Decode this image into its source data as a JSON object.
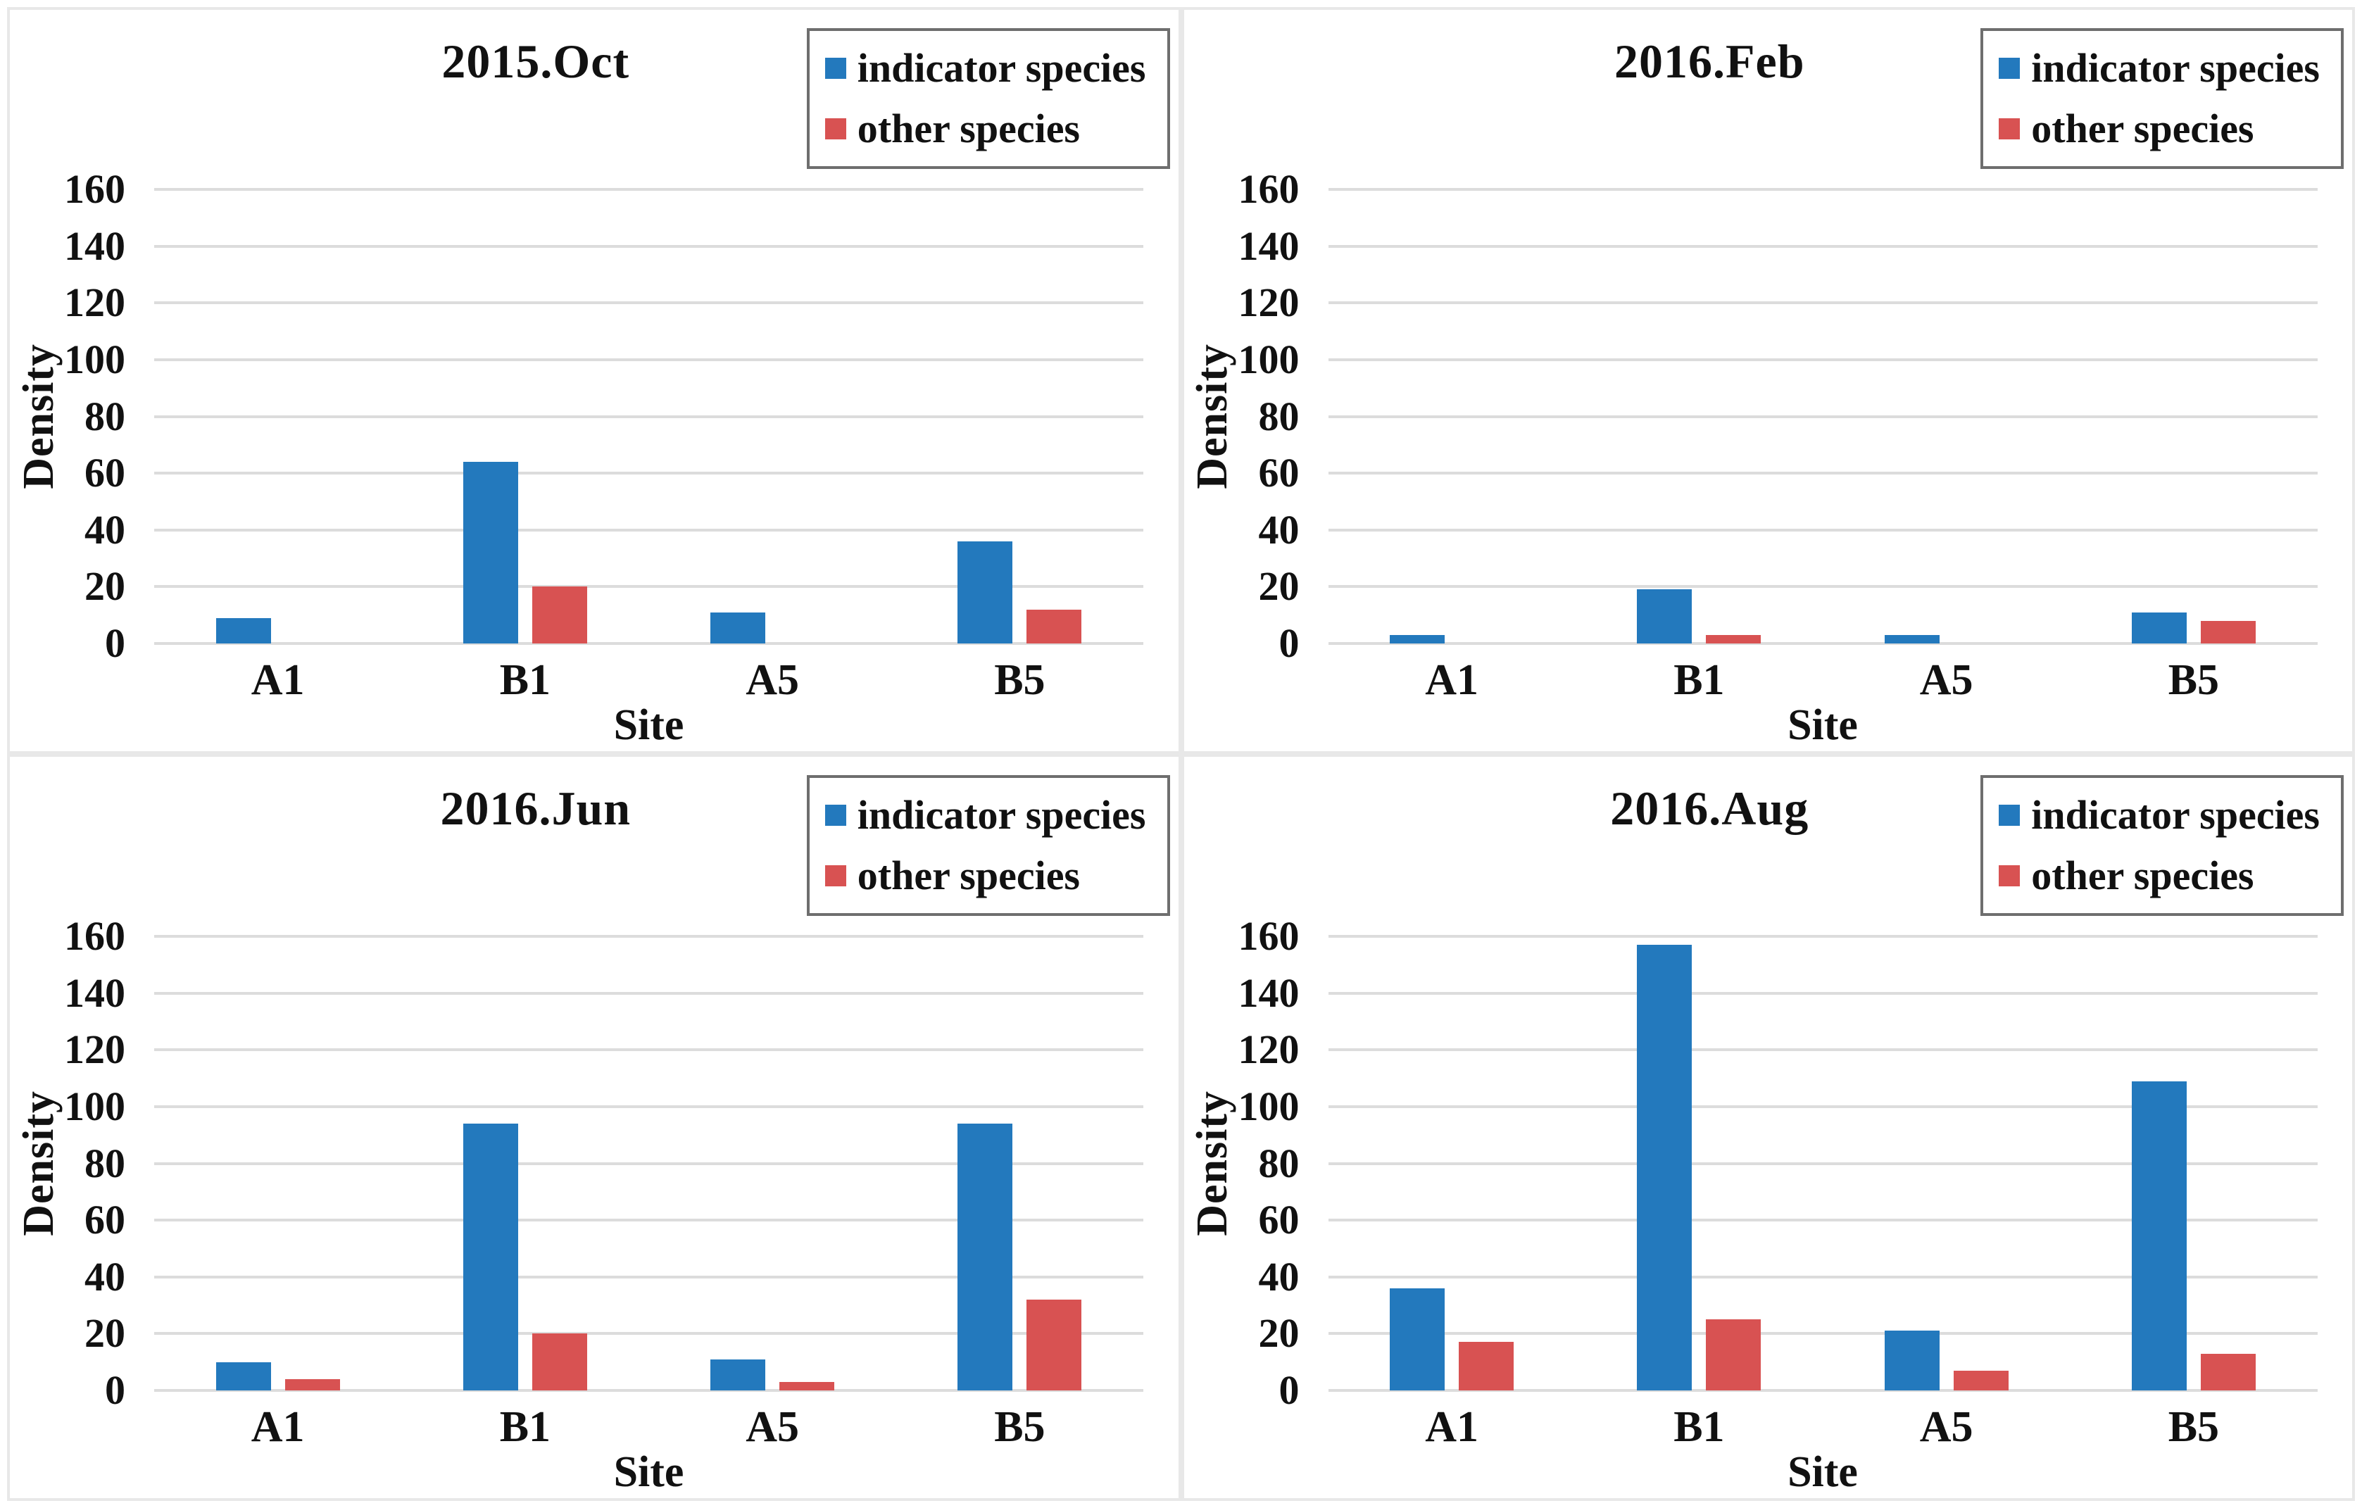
{
  "page": {
    "background": "#ffffff"
  },
  "colors": {
    "indicator": "#2379bd",
    "other": "#d85252",
    "gridline": "#dcdcdc",
    "panel_border": "#e8e8e8",
    "legend_border": "#6e6e6e",
    "text": "#111111"
  },
  "legend": {
    "items": [
      {
        "label": "indicator species",
        "color_key": "indicator"
      },
      {
        "label": "other species",
        "color_key": "other"
      }
    ]
  },
  "chart_data": [
    {
      "type": "bar",
      "title": "2015.Oct",
      "xlabel": "Site",
      "ylabel": "Density",
      "categories": [
        "A1",
        "B1",
        "A5",
        "B5"
      ],
      "ylim": [
        0,
        160
      ],
      "ytick_step": 20,
      "grid": true,
      "legend_position": "top-right",
      "series": [
        {
          "name": "indicator species",
          "values": [
            9,
            64,
            11,
            36
          ]
        },
        {
          "name": "other species",
          "values": [
            0,
            20,
            0,
            12
          ]
        }
      ]
    },
    {
      "type": "bar",
      "title": "2016.Feb",
      "xlabel": "Site",
      "ylabel": "Density",
      "categories": [
        "A1",
        "B1",
        "A5",
        "B5"
      ],
      "ylim": [
        0,
        160
      ],
      "ytick_step": 20,
      "grid": true,
      "legend_position": "top-right",
      "series": [
        {
          "name": "indicator species",
          "values": [
            3,
            19,
            3,
            11
          ]
        },
        {
          "name": "other species",
          "values": [
            0,
            3,
            0,
            8
          ]
        }
      ]
    },
    {
      "type": "bar",
      "title": "2016.Jun",
      "xlabel": "Site",
      "ylabel": "Density",
      "categories": [
        "A1",
        "B1",
        "A5",
        "B5"
      ],
      "ylim": [
        0,
        160
      ],
      "ytick_step": 20,
      "grid": true,
      "legend_position": "top-right",
      "series": [
        {
          "name": "indicator species",
          "values": [
            10,
            94,
            11,
            94
          ]
        },
        {
          "name": "other species",
          "values": [
            4,
            20,
            3,
            32
          ]
        }
      ]
    },
    {
      "type": "bar",
      "title": "2016.Aug",
      "xlabel": "Site",
      "ylabel": "Density",
      "categories": [
        "A1",
        "B1",
        "A5",
        "B5"
      ],
      "ylim": [
        0,
        160
      ],
      "ytick_step": 20,
      "grid": true,
      "legend_position": "top-right",
      "series": [
        {
          "name": "indicator species",
          "values": [
            36,
            157,
            21,
            109
          ]
        },
        {
          "name": "other species",
          "values": [
            17,
            25,
            7,
            13
          ]
        }
      ]
    }
  ]
}
